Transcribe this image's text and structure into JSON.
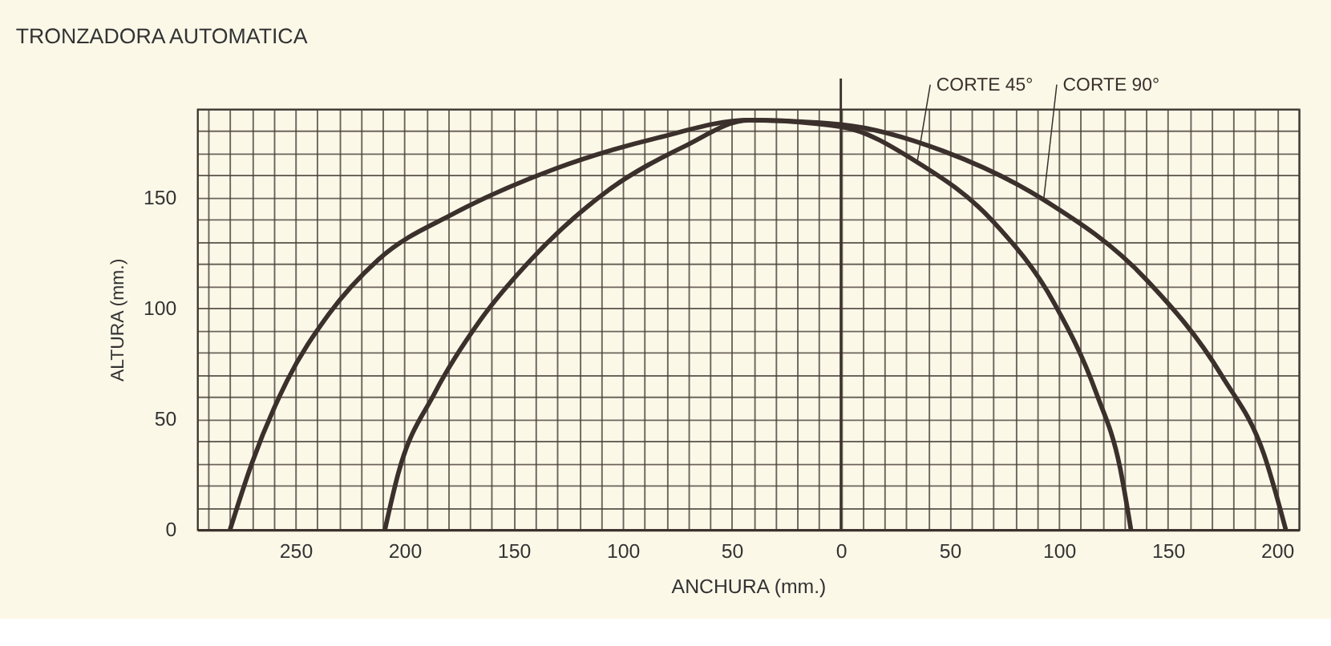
{
  "chart_data": {
    "type": "line",
    "title": "TRONZADORA AUTOMATICA",
    "xlabel": "ANCHURA (mm.)",
    "ylabel": "ALTURA (mm.)",
    "series": [
      {
        "name": "CORTE 45°",
        "color": "#3b302b",
        "x": [
          -209,
          -203,
          -186,
          -165,
          -142,
          -107,
          -72,
          -42,
          0,
          35,
          70,
          98,
          117,
          128,
          133
        ],
        "values": [
          0,
          25,
          62,
          95,
          122,
          153,
          173,
          185,
          182,
          166,
          139,
          102,
          62,
          28,
          0
        ]
      },
      {
        "name": "CORTE 90°",
        "color": "#3b302b",
        "x": [
          -280,
          -270,
          -254,
          -235,
          -212,
          -177,
          -131,
          -84,
          -42,
          0,
          47,
          93,
          140,
          175,
          194,
          204
        ],
        "values": [
          0,
          30,
          67,
          97,
          122,
          143,
          163,
          177,
          185,
          183,
          171,
          149,
          113,
          69,
          34,
          0
        ]
      }
    ],
    "xlim": [
      -295,
      210
    ],
    "xticks": [
      {
        "value": -290,
        "label": null
      },
      {
        "value": -280,
        "label": null
      },
      {
        "value": -270,
        "label": null
      },
      {
        "value": -260,
        "label": null
      },
      {
        "value": -250,
        "label": "250"
      },
      {
        "value": -240,
        "label": null
      },
      {
        "value": -230,
        "label": null
      },
      {
        "value": -220,
        "label": null
      },
      {
        "value": -210,
        "label": null
      },
      {
        "value": -200,
        "label": "200"
      },
      {
        "value": -190,
        "label": null
      },
      {
        "value": -180,
        "label": null
      },
      {
        "value": -170,
        "label": null
      },
      {
        "value": -160,
        "label": null
      },
      {
        "value": -150,
        "label": "150"
      },
      {
        "value": -140,
        "label": null
      },
      {
        "value": -130,
        "label": null
      },
      {
        "value": -120,
        "label": null
      },
      {
        "value": -110,
        "label": null
      },
      {
        "value": -100,
        "label": "100"
      },
      {
        "value": -90,
        "label": null
      },
      {
        "value": -80,
        "label": null
      },
      {
        "value": -70,
        "label": null
      },
      {
        "value": -60,
        "label": null
      },
      {
        "value": -50,
        "label": "50"
      },
      {
        "value": -40,
        "label": null
      },
      {
        "value": -30,
        "label": null
      },
      {
        "value": -20,
        "label": null
      },
      {
        "value": -10,
        "label": null
      },
      0,
      {
        "value": 10,
        "label": null
      },
      {
        "value": 20,
        "label": null
      },
      {
        "value": 30,
        "label": null
      },
      {
        "value": 40,
        "label": null
      },
      50,
      {
        "value": 60,
        "label": null
      },
      {
        "value": 70,
        "label": null
      },
      {
        "value": 80,
        "label": null
      },
      {
        "value": 90,
        "label": null
      },
      100,
      {
        "value": 110,
        "label": null
      },
      {
        "value": 120,
        "label": null
      },
      {
        "value": 130,
        "label": null
      },
      {
        "value": 140,
        "label": null
      },
      150,
      {
        "value": 160,
        "label": null
      },
      {
        "value": 170,
        "label": null
      },
      {
        "value": 180,
        "label": null
      },
      {
        "value": 190,
        "label": null
      },
      200,
      {
        "value": 210,
        "label": null
      }
    ],
    "ylim": [
      0,
      190
    ],
    "yticks": [
      0,
      {
        "value": 10,
        "label": null
      },
      {
        "value": 20,
        "label": null
      },
      {
        "value": 30,
        "label": null
      },
      {
        "value": 40,
        "label": null
      },
      50,
      {
        "value": 60,
        "label": null
      },
      {
        "value": 70,
        "label": null
      },
      {
        "value": 80,
        "label": null
      },
      {
        "value": 90,
        "label": null
      },
      100,
      {
        "value": 110,
        "label": null
      },
      {
        "value": 120,
        "label": null
      },
      {
        "value": 130,
        "label": null
      },
      {
        "value": 140,
        "label": null
      },
      150,
      {
        "value": 160,
        "label": null
      },
      {
        "value": 170,
        "label": null
      },
      {
        "value": 180,
        "label": null
      },
      {
        "value": 190,
        "label": null
      }
    ],
    "ref_lines": [
      {
        "axis": "x",
        "value": 0,
        "color": "#3b302b"
      }
    ],
    "grid": true,
    "legend": false,
    "marker": "none",
    "line_style": "solid"
  }
}
